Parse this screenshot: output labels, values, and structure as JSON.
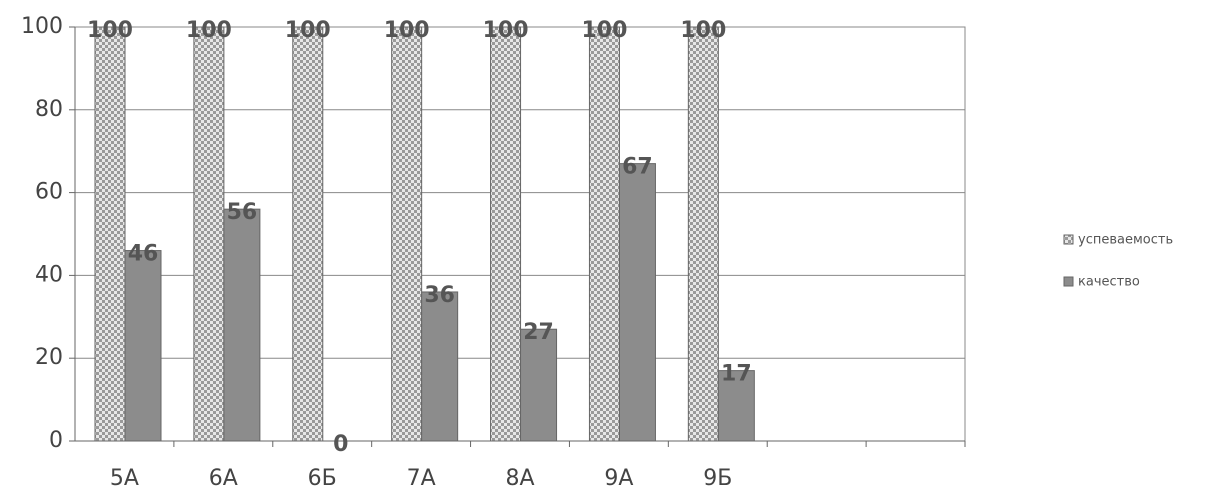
{
  "chart_data": {
    "type": "bar",
    "categories": [
      "5А",
      "6А",
      "6Б",
      "7А",
      "8А",
      "9А",
      "9Б",
      null,
      null
    ],
    "series": [
      {
        "name": "успеваемость",
        "color": "#c9c9c9",
        "values": [
          100,
          100,
          100,
          100,
          100,
          100,
          100,
          null,
          null
        ]
      },
      {
        "name": "качество",
        "color": "#8c8c8c",
        "values": [
          46,
          56,
          0,
          36,
          27,
          67,
          17,
          null,
          null
        ]
      }
    ],
    "ylim": [
      0,
      100
    ],
    "yticks": [
      0,
      20,
      40,
      60,
      80,
      100
    ],
    "grid": true,
    "legend": "right"
  }
}
